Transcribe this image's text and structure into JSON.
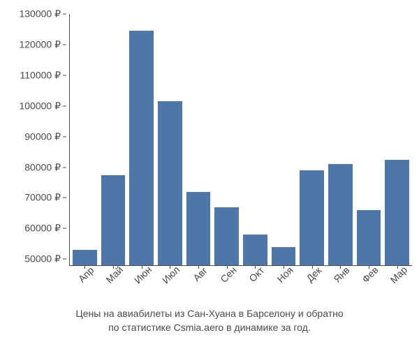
{
  "chart": {
    "type": "bar",
    "categories": [
      "Апр",
      "Май",
      "Июн",
      "Июл",
      "Авг",
      "Сен",
      "Окт",
      "Ноя",
      "Дек",
      "Янв",
      "Фев",
      "Мар"
    ],
    "values": [
      53000,
      77500,
      124500,
      101500,
      72000,
      67000,
      58000,
      54000,
      79000,
      81000,
      66000,
      82500
    ],
    "bar_color": "#4f76a8",
    "y_min": 48000,
    "y_max": 130000,
    "y_ticks": [
      50000,
      60000,
      70000,
      80000,
      90000,
      100000,
      110000,
      120000,
      130000
    ],
    "y_tick_labels": [
      "50000 ₽",
      "60000 ₽",
      "70000 ₽",
      "80000 ₽",
      "90000 ₽",
      "100000 ₽",
      "110000 ₽",
      "120000 ₽",
      "130000 ₽"
    ],
    "currency_symbol": "₽",
    "background_color": "#ffffff",
    "text_color": "#4a4a4a",
    "tick_fontsize": 14,
    "x_label_rotation": -45,
    "caption_line1": "Цены на авиабилеты из Сан-Хуана в Барселону и обратно",
    "caption_line2": "по статистике Csmia.aero в динамике за год.",
    "caption_fontsize": 14,
    "bar_gap": 6
  }
}
